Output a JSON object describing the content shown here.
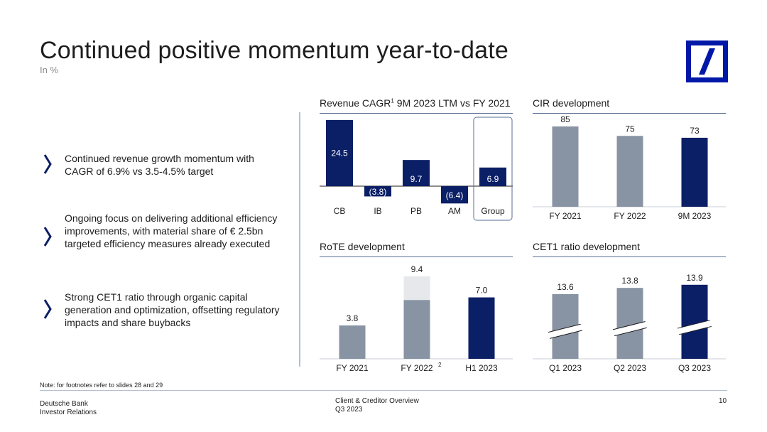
{
  "slide": {
    "title": "Continued positive momentum year-to-date",
    "subtitle": "In %",
    "note": "Note: for footnotes refer to slides 28 and 29",
    "footer_left": [
      "Deutsche Bank",
      "Investor Relations"
    ],
    "footer_center": [
      "Client & Creditor Overview",
      "Q3 2023"
    ],
    "page_number": "10"
  },
  "bullets": [
    "Continued revenue growth momentum with CAGR of 6.9% vs 3.5-4.5% target",
    "Ongoing focus on delivering additional efficiency improvements, with material share of € 2.5bn targeted efficiency measures already executed",
    "Strong CET1 ratio through organic capital generation and optimization, offsetting regulatory impacts and share buybacks"
  ],
  "colors": {
    "navy": "#0b1f66",
    "gray_bar": "#8893a3",
    "light_gray_bar": "#e6e8ec",
    "logo_blue": "#0018a8",
    "divider": "#b3bfd2"
  },
  "chart_titles": {
    "revenue": {
      "main": "Revenue CAGR",
      "sup": "1",
      "rest": " 9M 2023 LTM vs FY 2021"
    },
    "cir": "CIR development",
    "rote": "RoTE development",
    "cet1": "CET1 ratio development"
  },
  "chart_data": [
    {
      "id": "revenue",
      "type": "bar",
      "categories": [
        "CB",
        "IB",
        "PB",
        "AM",
        "Group"
      ],
      "values": [
        24.5,
        -3.8,
        9.7,
        -6.4,
        6.9
      ],
      "labels": [
        "24.5",
        "(3.8)",
        "9.7",
        "(6.4)",
        "6.9"
      ],
      "highlight": "Group",
      "bar_color": "#0b1f66"
    },
    {
      "id": "cir",
      "type": "bar",
      "categories": [
        "FY 2021",
        "FY 2022",
        "9M 2023"
      ],
      "values": [
        85,
        75,
        73
      ],
      "labels": [
        "85",
        "75",
        "73"
      ],
      "colors": [
        "#8893a3",
        "#8893a3",
        "#0b1f66"
      ]
    },
    {
      "id": "rote",
      "type": "bar",
      "categories": [
        "FY 2021",
        "FY 2022",
        "H1 2023"
      ],
      "category_sup": [
        "",
        "2",
        ""
      ],
      "values": [
        3.8,
        9.4,
        7.0
      ],
      "base_values": [
        3.8,
        6.7,
        7.0
      ],
      "labels": [
        "3.8",
        "9.4",
        "7.0"
      ],
      "colors": [
        "#8893a3",
        "#8893a3",
        "#0b1f66"
      ]
    },
    {
      "id": "cet1",
      "type": "bar",
      "categories": [
        "Q1 2023",
        "Q2 2023",
        "Q3 2023"
      ],
      "values": [
        13.6,
        13.8,
        13.9
      ],
      "labels": [
        "13.6",
        "13.8",
        "13.9"
      ],
      "colors": [
        "#8893a3",
        "#8893a3",
        "#0b1f66"
      ],
      "axis_break": true
    }
  ]
}
